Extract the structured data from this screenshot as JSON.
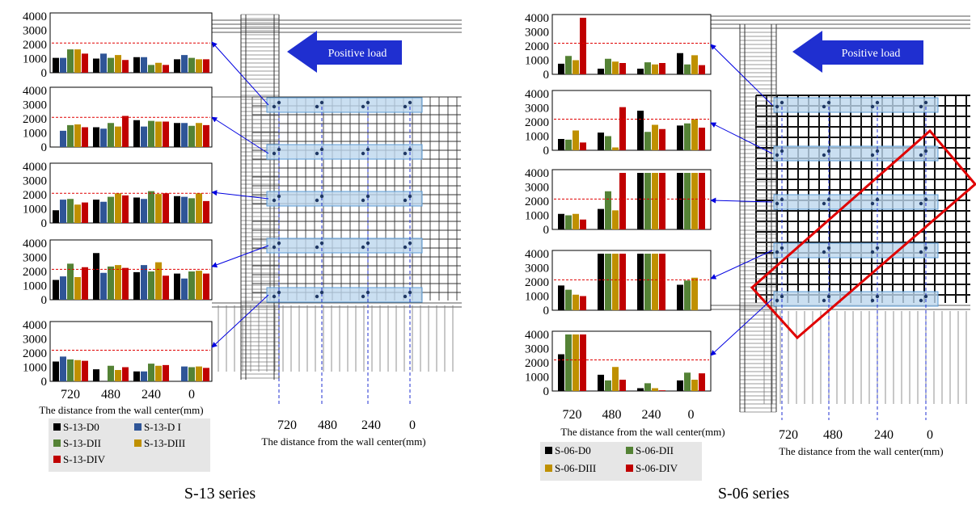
{
  "colors": {
    "s13": [
      "#000000",
      "#2F5597",
      "#548235",
      "#BF9000",
      "#C00000"
    ],
    "s06": [
      "#000000",
      "#548235",
      "#BF9000",
      "#C00000"
    ],
    "threshold": "#E00000",
    "beam_fill": "#BDD7EE",
    "beam_stroke": "#5B9BD5",
    "arrow_blue": "#0000E0",
    "load_arrow": "#1F2FD0",
    "crack_box": "#E00000",
    "legend_bg": "#E6E6E6"
  },
  "panels": [
    {
      "series_title": "S-13 series",
      "load_label": "Positive load",
      "x_axis_label": "The distance from the wall center(mm)",
      "x_ticks": [
        "720",
        "480",
        "240",
        "0"
      ],
      "drawing_axis_label": "The distance from the wall center(mm)",
      "drawing_ticks": [
        "720",
        "480",
        "240",
        "0"
      ],
      "legend": [
        "S-13-D0",
        "S-13-D I",
        "S-13-DII",
        "S-13-DIII",
        "S-13-DIV"
      ]
    },
    {
      "series_title": "S-06 series",
      "load_label": "Positive load",
      "x_axis_label": "The distance from the wall center(mm)",
      "x_ticks": [
        "720",
        "480",
        "240",
        "0"
      ],
      "drawing_axis_label": "The distance from the wall center(mm)",
      "drawing_ticks": [
        "720",
        "480",
        "240",
        "0"
      ],
      "legend": [
        "S-06-D0",
        "S-06-DII",
        "S-06-DIII",
        "S-06-DIV"
      ]
    }
  ],
  "chart_data": [
    {
      "type": "bar",
      "panel": "S-13 series",
      "row": 1,
      "categories": [
        "720",
        "480",
        "240",
        "0"
      ],
      "series_names": [
        "S-13-D0",
        "S-13-D I",
        "S-13-DII",
        "S-13-DIII",
        "S-13-DIV"
      ],
      "values": [
        [
          1050,
          1050,
          1650,
          1650,
          1350
        ],
        [
          1000,
          1350,
          1050,
          1250,
          900
        ],
        [
          1100,
          1100,
          550,
          700,
          550
        ],
        [
          950,
          1250,
          1050,
          950,
          950
        ]
      ],
      "y_ticks": [
        0,
        1000,
        2000,
        3000,
        4000
      ],
      "ylim": [
        0,
        4000
      ],
      "threshold": 2100
    },
    {
      "type": "bar",
      "panel": "S-13 series",
      "row": 2,
      "categories": [
        "720",
        "480",
        "240",
        "0"
      ],
      "series_names": [
        "S-13-D0",
        "S-13-D I",
        "S-13-DII",
        "S-13-DIII",
        "S-13-DIV"
      ],
      "values": [
        [
          0,
          1150,
          1550,
          1600,
          1400
        ],
        [
          1400,
          1300,
          1700,
          1450,
          2200
        ],
        [
          1900,
          1450,
          1850,
          1800,
          1800
        ],
        [
          1700,
          1700,
          1500,
          1700,
          1550
        ]
      ],
      "y_ticks": [
        0,
        1000,
        2000,
        3000,
        4000
      ],
      "ylim": [
        0,
        4000
      ],
      "threshold": 2100
    },
    {
      "type": "bar",
      "panel": "S-13 series",
      "row": 3,
      "categories": [
        "720",
        "480",
        "240",
        "0"
      ],
      "series_names": [
        "S-13-D0",
        "S-13-D I",
        "S-13-DII",
        "S-13-DIII",
        "S-13-DIV"
      ],
      "values": [
        [
          900,
          1650,
          1700,
          1300,
          1450
        ],
        [
          1650,
          1500,
          1850,
          2100,
          1950
        ],
        [
          1800,
          1700,
          2250,
          2050,
          2100
        ],
        [
          1900,
          1850,
          1750,
          2100,
          1550
        ]
      ],
      "y_ticks": [
        0,
        1000,
        2000,
        3000,
        4000
      ],
      "ylim": [
        0,
        4000
      ],
      "threshold": 2100
    },
    {
      "type": "bar",
      "panel": "S-13 series",
      "row": 4,
      "categories": [
        "720",
        "480",
        "240",
        "0"
      ],
      "series_names": [
        "S-13-D0",
        "S-13-D I",
        "S-13-DII",
        "S-13-DIII",
        "S-13-DIV"
      ],
      "values": [
        [
          1400,
          1650,
          2550,
          1600,
          2300
        ],
        [
          3300,
          1900,
          2350,
          2450,
          2250
        ],
        [
          1950,
          2450,
          2000,
          2650,
          1700
        ],
        [
          1850,
          1500,
          2000,
          2050,
          1850
        ]
      ],
      "y_ticks": [
        0,
        1000,
        2000,
        3000,
        4000
      ],
      "ylim": [
        0,
        4000
      ],
      "threshold": 2150
    },
    {
      "type": "bar",
      "panel": "S-13 series",
      "row": 5,
      "categories": [
        "720",
        "480",
        "240",
        "0"
      ],
      "series_names": [
        "S-13-D0",
        "S-13-D I",
        "S-13-DII",
        "S-13-DIII",
        "S-13-DIV"
      ],
      "values": [
        [
          1400,
          1750,
          1550,
          1500,
          1450
        ],
        [
          850,
          0,
          1100,
          800,
          1000
        ],
        [
          700,
          700,
          1250,
          1100,
          1150
        ],
        [
          0,
          1050,
          1000,
          1050,
          950
        ]
      ],
      "y_ticks": [
        0,
        1000,
        2000,
        3000,
        4000
      ],
      "ylim": [
        0,
        4000
      ],
      "threshold": 2200
    },
    {
      "type": "bar",
      "panel": "S-06 series",
      "row": 1,
      "categories": [
        "720",
        "480",
        "240",
        "0"
      ],
      "series_names": [
        "S-06-D0",
        "S-06-DII",
        "S-06-DIII",
        "S-06-DIV"
      ],
      "values": [
        [
          750,
          1300,
          1000,
          4000
        ],
        [
          400,
          1100,
          900,
          800
        ],
        [
          400,
          850,
          700,
          800
        ],
        [
          1500,
          700,
          1350,
          650
        ]
      ],
      "y_ticks": [
        0,
        1000,
        2000,
        3000,
        4000
      ],
      "ylim": [
        0,
        4000
      ],
      "threshold": 2200
    },
    {
      "type": "bar",
      "panel": "S-06 series",
      "row": 2,
      "categories": [
        "720",
        "480",
        "240",
        "0"
      ],
      "series_names": [
        "S-06-D0",
        "S-06-DII",
        "S-06-DIII",
        "S-06-DIV"
      ],
      "values": [
        [
          800,
          750,
          1400,
          550
        ],
        [
          1250,
          1000,
          200,
          3050
        ],
        [
          2800,
          1300,
          1800,
          1500
        ],
        [
          1750,
          1900,
          2200,
          1600
        ]
      ],
      "y_ticks": [
        0,
        1000,
        2000,
        3000,
        4000
      ],
      "ylim": [
        0,
        4000
      ],
      "threshold": 2200
    },
    {
      "type": "bar",
      "panel": "S-06 series",
      "row": 3,
      "categories": [
        "720",
        "480",
        "240",
        "0"
      ],
      "series_names": [
        "S-06-D0",
        "S-06-DII",
        "S-06-DIII",
        "S-06-DIV"
      ],
      "values": [
        [
          1100,
          1000,
          1100,
          700
        ],
        [
          1450,
          2700,
          1350,
          4000
        ],
        [
          4000,
          4000,
          4000,
          4000
        ],
        [
          4000,
          4000,
          4000,
          4000
        ]
      ],
      "y_ticks": [
        0,
        1000,
        2000,
        3000,
        4000
      ],
      "ylim": [
        0,
        4000
      ],
      "threshold": 2150
    },
    {
      "type": "bar",
      "panel": "S-06 series",
      "row": 4,
      "categories": [
        "720",
        "480",
        "240",
        "0"
      ],
      "series_names": [
        "S-06-D0",
        "S-06-DII",
        "S-06-DIII",
        "S-06-DIV"
      ],
      "values": [
        [
          1750,
          1450,
          1100,
          1000
        ],
        [
          4000,
          4000,
          4000,
          4000
        ],
        [
          4000,
          4000,
          4000,
          4000
        ],
        [
          1800,
          2100,
          2300,
          0
        ]
      ],
      "y_ticks": [
        0,
        1000,
        2000,
        3000,
        4000
      ],
      "ylim": [
        0,
        4000
      ],
      "threshold": 2150
    },
    {
      "type": "bar",
      "panel": "S-06 series",
      "row": 5,
      "categories": [
        "720",
        "480",
        "240",
        "0"
      ],
      "series_names": [
        "S-06-D0",
        "S-06-DII",
        "S-06-DIII",
        "S-06-DIV"
      ],
      "values": [
        [
          2600,
          4000,
          4000,
          4000
        ],
        [
          1150,
          750,
          1700,
          800
        ],
        [
          200,
          550,
          200,
          50
        ],
        [
          750,
          1300,
          800,
          1250
        ]
      ],
      "y_ticks": [
        0,
        1000,
        2000,
        3000,
        4000
      ],
      "ylim": [
        0,
        4000
      ],
      "threshold": 2200
    }
  ]
}
